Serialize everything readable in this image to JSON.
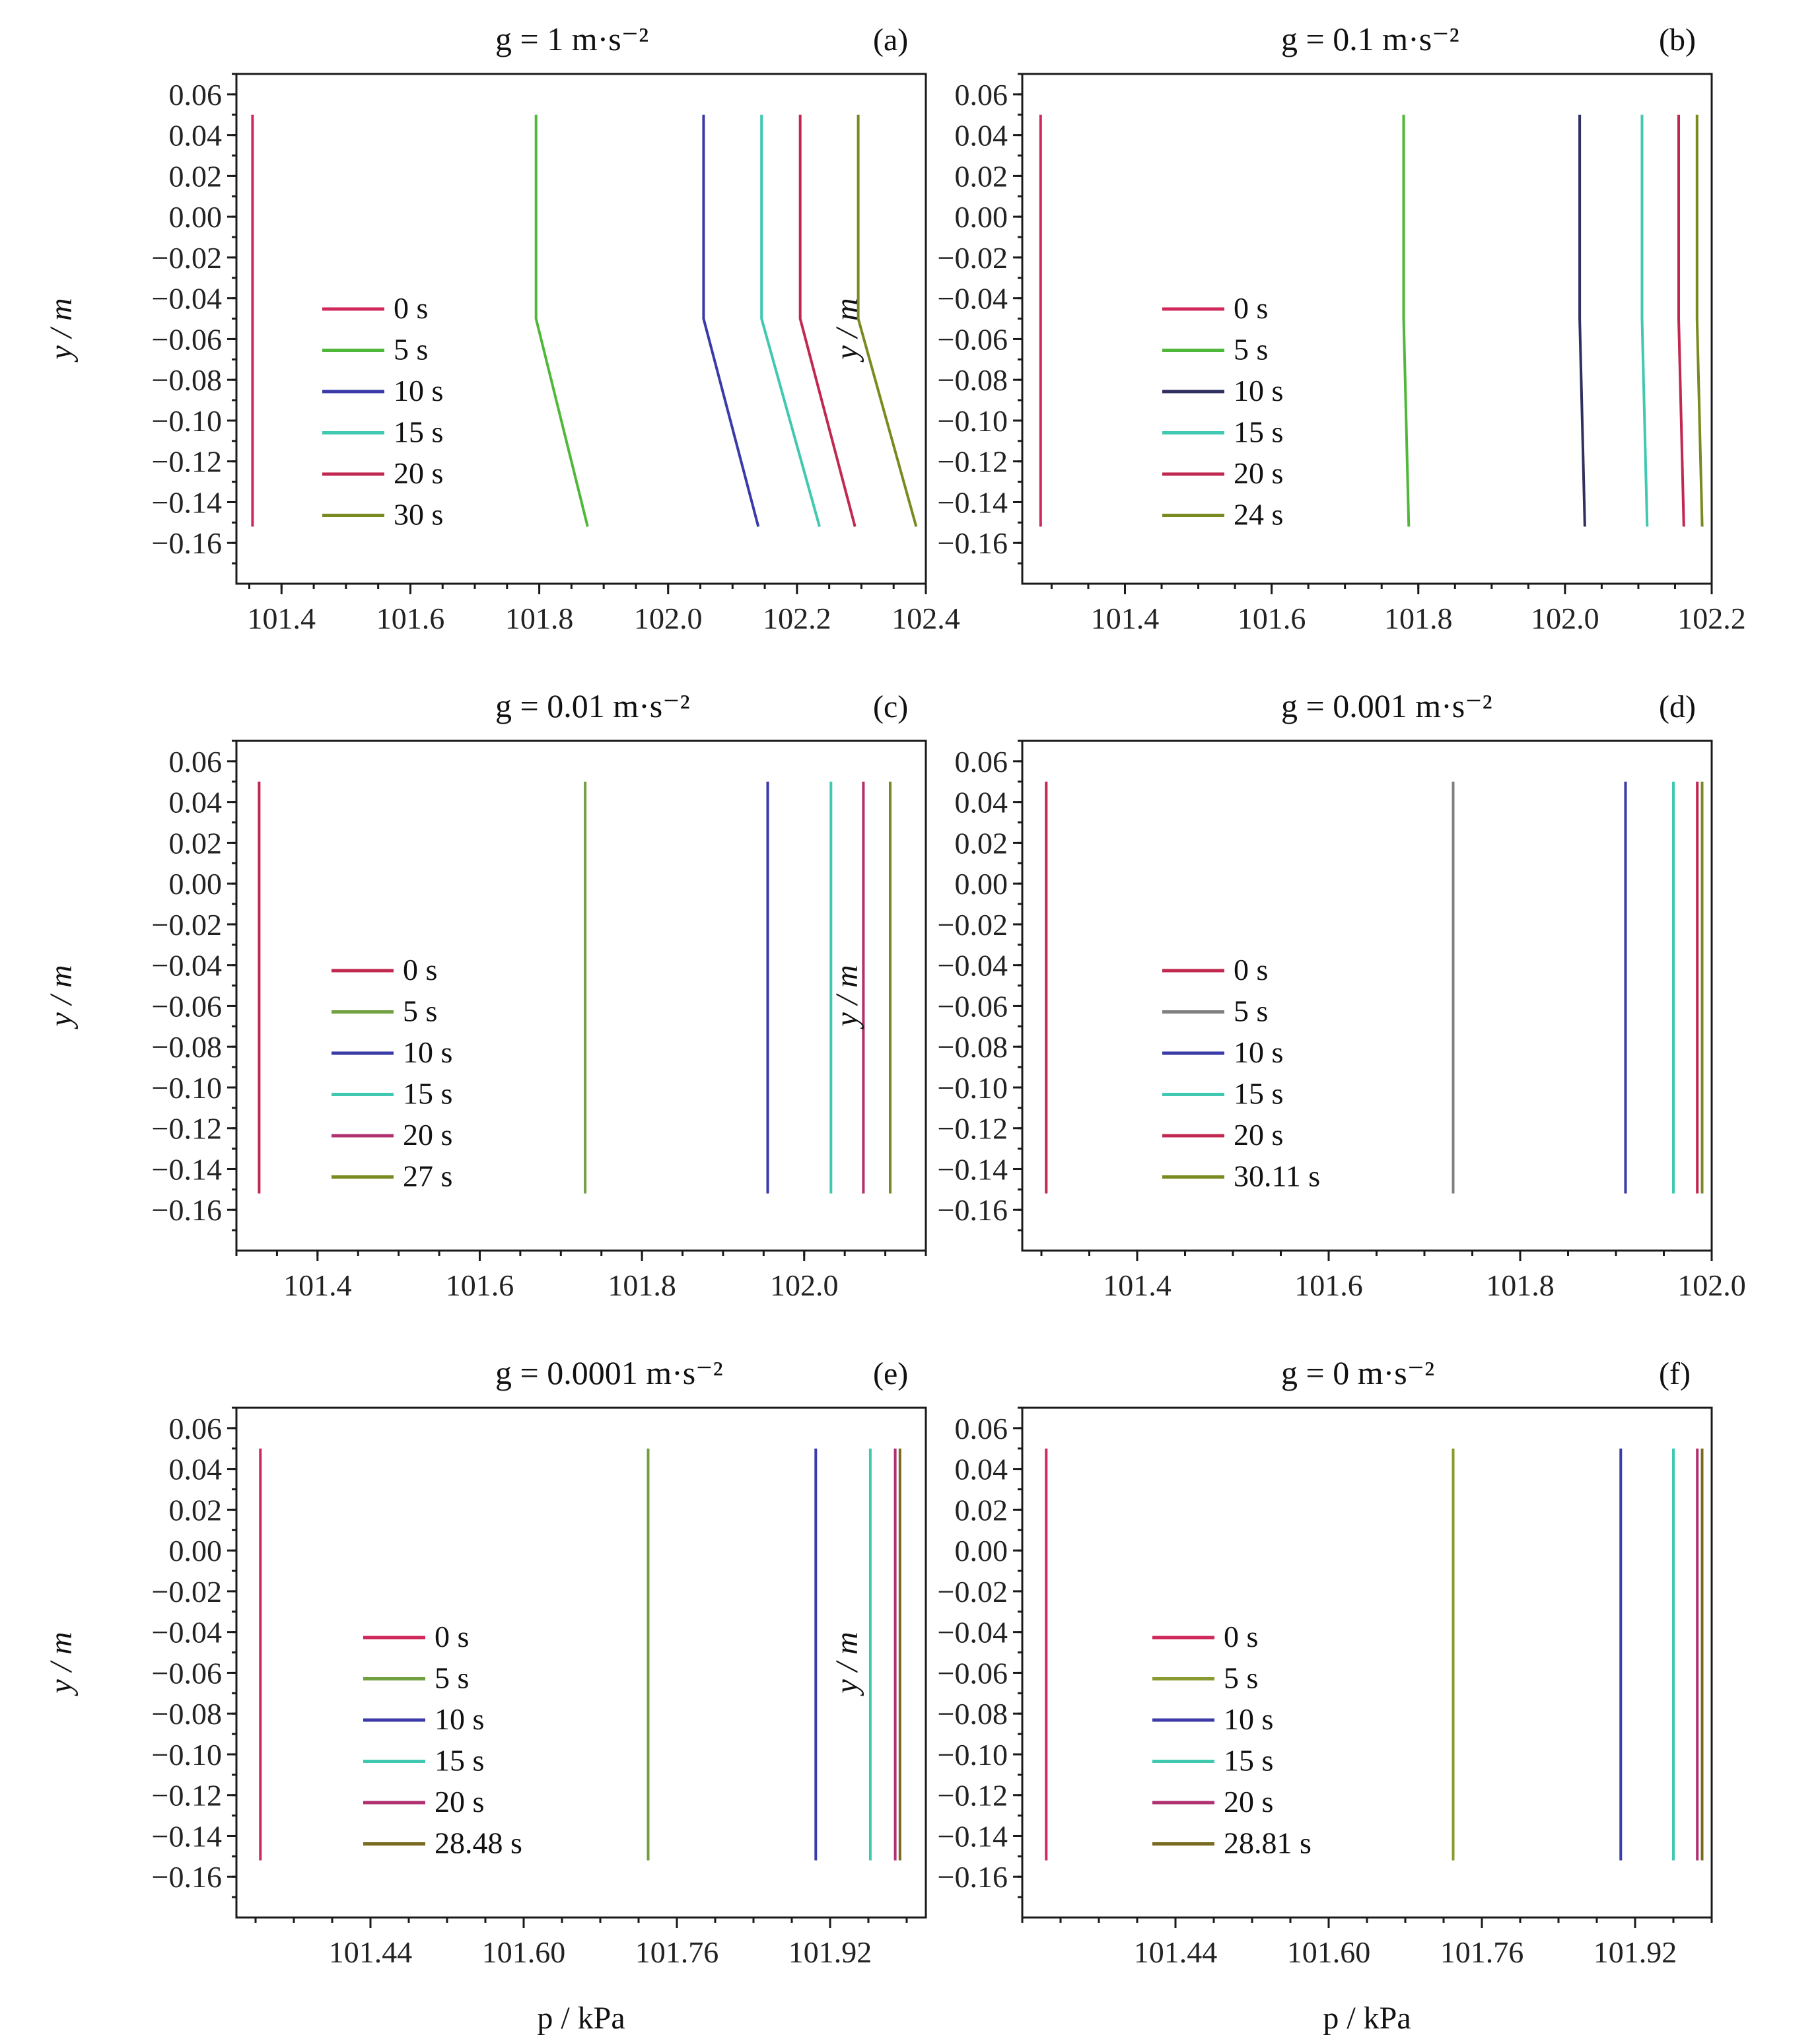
{
  "figure": {
    "ylabel": "y / m",
    "xlabel": "p / kPa",
    "y_ticks": [
      "0.06",
      "0.04",
      "0.02",
      "0.00",
      "−0.02",
      "−0.04",
      "−0.06",
      "−0.08",
      "−0.10",
      "−0.12",
      "−0.14",
      "−0.16"
    ]
  },
  "chart_data": [
    {
      "type": "line",
      "panel": "(a)",
      "title": "g = 1 m·s⁻²",
      "xlim": [
        101.33,
        102.4
      ],
      "ylim": [
        -0.18,
        0.07
      ],
      "x_ticks": [
        101.4,
        101.6,
        101.8,
        102.0,
        102.2,
        102.4
      ],
      "x_tick_labels": [
        "101.4",
        "101.6",
        "101.8",
        "102.0",
        "102.2",
        "102.4"
      ],
      "show_xlabel": false,
      "series": [
        {
          "name": "0 s",
          "color": "#d0285a",
          "points": [
            [
              101.355,
              0.05
            ],
            [
              101.355,
              -0.05
            ],
            [
              101.355,
              -0.152
            ]
          ]
        },
        {
          "name": "5 s",
          "color": "#4fb83a",
          "points": [
            [
              101.795,
              0.05
            ],
            [
              101.795,
              -0.05
            ],
            [
              101.875,
              -0.152
            ]
          ]
        },
        {
          "name": "10 s",
          "color": "#3a3aa8",
          "points": [
            [
              102.055,
              0.05
            ],
            [
              102.055,
              -0.05
            ],
            [
              102.14,
              -0.152
            ]
          ]
        },
        {
          "name": "15 s",
          "color": "#40c8b0",
          "points": [
            [
              102.145,
              0.05
            ],
            [
              102.145,
              -0.05
            ],
            [
              102.235,
              -0.152
            ]
          ]
        },
        {
          "name": "20 s",
          "color": "#c02850",
          "points": [
            [
              102.205,
              0.05
            ],
            [
              102.205,
              -0.05
            ],
            [
              102.29,
              -0.152
            ]
          ]
        },
        {
          "name": "30 s",
          "color": "#7a8a20",
          "points": [
            [
              102.295,
              0.05
            ],
            [
              102.295,
              -0.05
            ],
            [
              102.385,
              -0.152
            ]
          ]
        }
      ]
    },
    {
      "type": "line",
      "panel": "(b)",
      "title": "g = 0.1 m·s⁻²",
      "xlim": [
        101.26,
        102.2
      ],
      "ylim": [
        -0.18,
        0.07
      ],
      "x_ticks": [
        101.4,
        101.6,
        101.8,
        102.0,
        102.2
      ],
      "x_tick_labels": [
        "101.4",
        "101.6",
        "101.8",
        "102.0",
        "102.2"
      ],
      "show_xlabel": false,
      "series": [
        {
          "name": "0 s",
          "color": "#d0285a",
          "points": [
            [
              101.285,
              0.05
            ],
            [
              101.285,
              -0.05
            ],
            [
              101.285,
              -0.152
            ]
          ]
        },
        {
          "name": "5 s",
          "color": "#4fb83a",
          "points": [
            [
              101.78,
              0.05
            ],
            [
              101.78,
              -0.05
            ],
            [
              101.787,
              -0.152
            ]
          ]
        },
        {
          "name": "10 s",
          "color": "#303060",
          "points": [
            [
              102.02,
              0.05
            ],
            [
              102.02,
              -0.05
            ],
            [
              102.027,
              -0.152
            ]
          ]
        },
        {
          "name": "15 s",
          "color": "#40c8b0",
          "points": [
            [
              102.105,
              0.05
            ],
            [
              102.105,
              -0.05
            ],
            [
              102.112,
              -0.152
            ]
          ]
        },
        {
          "name": "20 s",
          "color": "#c02850",
          "points": [
            [
              102.155,
              0.05
            ],
            [
              102.155,
              -0.05
            ],
            [
              102.162,
              -0.152
            ]
          ]
        },
        {
          "name": "24 s",
          "color": "#7a8a20",
          "points": [
            [
              102.18,
              0.05
            ],
            [
              102.18,
              -0.05
            ],
            [
              102.187,
              -0.152
            ]
          ]
        }
      ]
    },
    {
      "type": "line",
      "panel": "(c)",
      "title": "g = 0.01 m·s⁻²",
      "xlim": [
        101.3,
        102.15
      ],
      "ylim": [
        -0.18,
        0.07
      ],
      "x_ticks": [
        101.4,
        101.6,
        101.8,
        102.0
      ],
      "x_tick_labels": [
        "101.4",
        "101.6",
        "101.8",
        "102.0"
      ],
      "show_xlabel": false,
      "series": [
        {
          "name": "0 s",
          "color": "#c02850",
          "points": [
            [
              101.328,
              0.05
            ],
            [
              101.328,
              -0.152
            ]
          ]
        },
        {
          "name": "5 s",
          "color": "#70a040",
          "points": [
            [
              101.73,
              0.05
            ],
            [
              101.73,
              -0.152
            ]
          ]
        },
        {
          "name": "10 s",
          "color": "#3a3aa8",
          "points": [
            [
              101.955,
              0.05
            ],
            [
              101.955,
              -0.152
            ]
          ]
        },
        {
          "name": "15 s",
          "color": "#40c8b0",
          "points": [
            [
              102.033,
              0.05
            ],
            [
              102.033,
              -0.152
            ]
          ]
        },
        {
          "name": "20 s",
          "color": "#b03070",
          "points": [
            [
              102.073,
              0.05
            ],
            [
              102.073,
              -0.152
            ]
          ]
        },
        {
          "name": "27 s",
          "color": "#7a8a20",
          "points": [
            [
              102.106,
              0.05
            ],
            [
              102.106,
              -0.152
            ]
          ]
        }
      ]
    },
    {
      "type": "line",
      "panel": "(d)",
      "title": "g = 0.001 m·s⁻²",
      "xlim": [
        101.28,
        102.0
      ],
      "ylim": [
        -0.18,
        0.07
      ],
      "x_ticks": [
        101.4,
        101.6,
        101.8,
        102.0
      ],
      "x_tick_labels": [
        "101.4",
        "101.6",
        "101.8",
        "102.0"
      ],
      "show_xlabel": false,
      "series": [
        {
          "name": "0 s",
          "color": "#c02850",
          "points": [
            [
              101.305,
              0.05
            ],
            [
              101.305,
              -0.152
            ]
          ]
        },
        {
          "name": "5 s",
          "color": "#808080",
          "points": [
            [
              101.73,
              0.05
            ],
            [
              101.73,
              -0.152
            ]
          ]
        },
        {
          "name": "10 s",
          "color": "#3a3aa8",
          "points": [
            [
              101.91,
              0.05
            ],
            [
              101.91,
              -0.152
            ]
          ]
        },
        {
          "name": "15 s",
          "color": "#40c8b0",
          "points": [
            [
              101.96,
              0.05
            ],
            [
              101.96,
              -0.152
            ]
          ]
        },
        {
          "name": "20 s",
          "color": "#c02850",
          "points": [
            [
              101.985,
              0.05
            ],
            [
              101.985,
              -0.152
            ]
          ]
        },
        {
          "name": "30.11 s",
          "color": "#7a8a20",
          "points": [
            [
              101.99,
              0.05
            ],
            [
              101.99,
              -0.152
            ]
          ]
        }
      ]
    },
    {
      "type": "line",
      "panel": "(e)",
      "title": "g = 0.0001 m·s⁻²",
      "xlim": [
        101.3,
        102.02
      ],
      "ylim": [
        -0.18,
        0.07
      ],
      "x_ticks": [
        101.44,
        101.6,
        101.76,
        101.92
      ],
      "x_tick_labels": [
        "101.44",
        "101.60",
        "101.76",
        "101.92"
      ],
      "show_xlabel": true,
      "series": [
        {
          "name": "0 s",
          "color": "#d0285a",
          "points": [
            [
              101.325,
              0.05
            ],
            [
              101.325,
              -0.152
            ]
          ]
        },
        {
          "name": "5 s",
          "color": "#70a040",
          "points": [
            [
              101.73,
              0.05
            ],
            [
              101.73,
              -0.152
            ]
          ]
        },
        {
          "name": "10 s",
          "color": "#3a3aa8",
          "points": [
            [
              101.905,
              0.05
            ],
            [
              101.905,
              -0.152
            ]
          ]
        },
        {
          "name": "15 s",
          "color": "#40c8b0",
          "points": [
            [
              101.962,
              0.05
            ],
            [
              101.962,
              -0.152
            ]
          ]
        },
        {
          "name": "20 s",
          "color": "#b03070",
          "points": [
            [
              101.988,
              0.05
            ],
            [
              101.988,
              -0.152
            ]
          ]
        },
        {
          "name": "28.48 s",
          "color": "#7a6a20",
          "points": [
            [
              101.993,
              0.05
            ],
            [
              101.993,
              -0.152
            ]
          ]
        }
      ]
    },
    {
      "type": "line",
      "panel": "(f)",
      "title": "g = 0 m·s⁻²",
      "xlim": [
        101.28,
        102.0
      ],
      "ylim": [
        -0.18,
        0.07
      ],
      "x_ticks": [
        101.44,
        101.6,
        101.76,
        101.92
      ],
      "x_tick_labels": [
        "101.44",
        "101.60",
        "101.76",
        "101.92"
      ],
      "show_xlabel": true,
      "series": [
        {
          "name": "0 s",
          "color": "#d0285a",
          "points": [
            [
              101.305,
              0.05
            ],
            [
              101.305,
              -0.152
            ]
          ]
        },
        {
          "name": "5 s",
          "color": "#8a9a30",
          "points": [
            [
              101.73,
              0.05
            ],
            [
              101.73,
              -0.152
            ]
          ]
        },
        {
          "name": "10 s",
          "color": "#3a3aa8",
          "points": [
            [
              101.905,
              0.05
            ],
            [
              101.905,
              -0.152
            ]
          ]
        },
        {
          "name": "15 s",
          "color": "#40c8b0",
          "points": [
            [
              101.96,
              0.05
            ],
            [
              101.96,
              -0.152
            ]
          ]
        },
        {
          "name": "20 s",
          "color": "#b03070",
          "points": [
            [
              101.985,
              0.05
            ],
            [
              101.985,
              -0.152
            ]
          ]
        },
        {
          "name": "28.81 s",
          "color": "#7a6a20",
          "points": [
            [
              101.99,
              0.05
            ],
            [
              101.99,
              -0.152
            ]
          ]
        }
      ]
    }
  ]
}
